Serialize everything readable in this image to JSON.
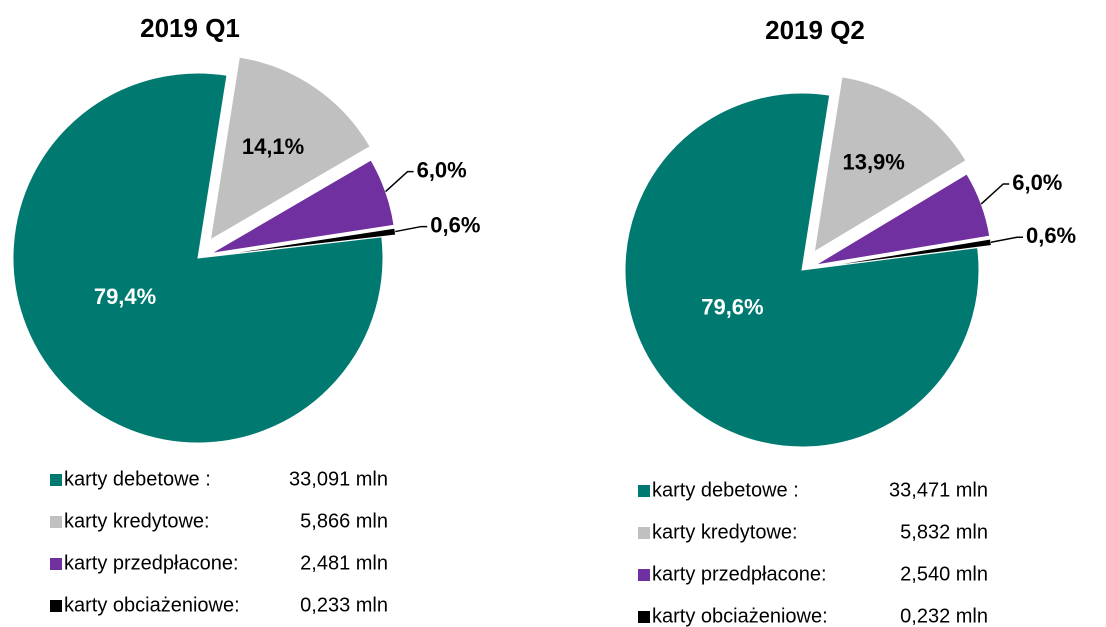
{
  "chart_data": [
    {
      "type": "pie",
      "title": "2019 Q1",
      "categories": [
        "karty debetowe :",
        "karty kredytowe:",
        "karty przedpłacone:",
        "karty obciażeniowe:"
      ],
      "legend_amounts": [
        "33,091 mln",
        "5,866 mln",
        "2,481 mln",
        "0,233 mln"
      ],
      "values": [
        79.4,
        14.1,
        6.0,
        0.6
      ],
      "value_labels": [
        "79,4%",
        "14,1%",
        "6,0%",
        "0,6%"
      ],
      "colors": [
        "#007a70",
        "#c0c0c0",
        "#7030a0",
        "#000000"
      ]
    },
    {
      "type": "pie",
      "title": "2019 Q2",
      "categories": [
        "karty debetowe :",
        "karty kredytowe:",
        "karty przedpłacone:",
        "karty obciażeniowe:"
      ],
      "legend_amounts": [
        "33,471 mln",
        "5,832 mln",
        "2,540 mln",
        "0,232 mln"
      ],
      "values": [
        79.6,
        13.9,
        6.0,
        0.6
      ],
      "value_labels": [
        "79,6%",
        "13,9%",
        "6,0%",
        "0,6%"
      ],
      "colors": [
        "#007a70",
        "#c0c0c0",
        "#7030a0",
        "#000000"
      ]
    }
  ]
}
